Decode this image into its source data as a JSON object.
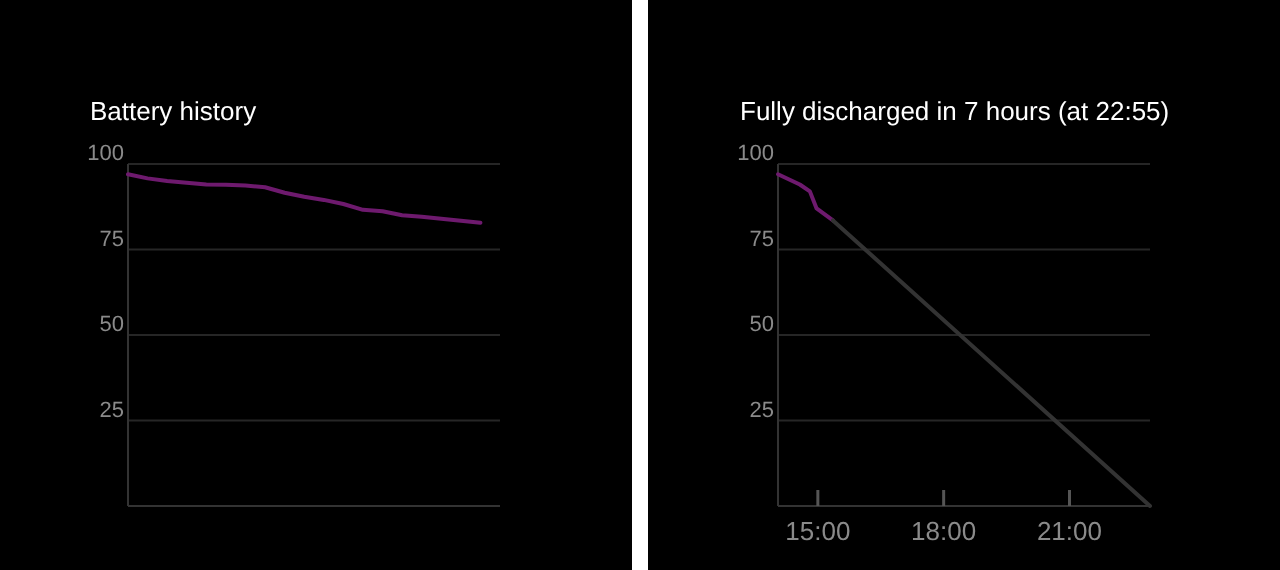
{
  "chart_data": [
    {
      "type": "line",
      "title": "Battery history",
      "categories": [
        null,
        null,
        null,
        null,
        null,
        null,
        null,
        null,
        null,
        null,
        null,
        null,
        null,
        null,
        null,
        null,
        null,
        null,
        null,
        null
      ],
      "series": [
        {
          "color": "#6e1a6e",
          "values": [
            97,
            95.8,
            95,
            94.5,
            94,
            93.9,
            93.7,
            93.2,
            91.6,
            90.4,
            89.5,
            88.3,
            86.6,
            86.2,
            85,
            84.6,
            84,
            83.4,
            82.8,
            null
          ]
        }
      ],
      "ylim": [
        0,
        100
      ],
      "yticks": [
        25,
        50,
        75,
        100
      ],
      "grid": "y",
      "tick_labels": "y"
    },
    {
      "type": "line",
      "title": "Fully discharged in 7 hours (at 22:55)",
      "xlim": [
        14.05,
        22.92
      ],
      "xticks": [
        {
          "value": 15,
          "label": "15:00"
        },
        {
          "value": 18,
          "label": "18:00"
        },
        {
          "value": 21,
          "label": "21:00"
        }
      ],
      "series": [
        {
          "color": "#6e1a6e",
          "x": [
            14.05,
            14.57,
            14.81,
            14.97,
            15.36
          ],
          "values": [
            97,
            94,
            92,
            87,
            83.5
          ]
        },
        {
          "color": "#333333",
          "x": [
            15.36,
            22.92
          ],
          "values": [
            83.5,
            0
          ]
        }
      ],
      "ylim": [
        0,
        100
      ],
      "yticks": [
        25,
        50,
        75,
        100
      ],
      "grid": "y"
    }
  ]
}
